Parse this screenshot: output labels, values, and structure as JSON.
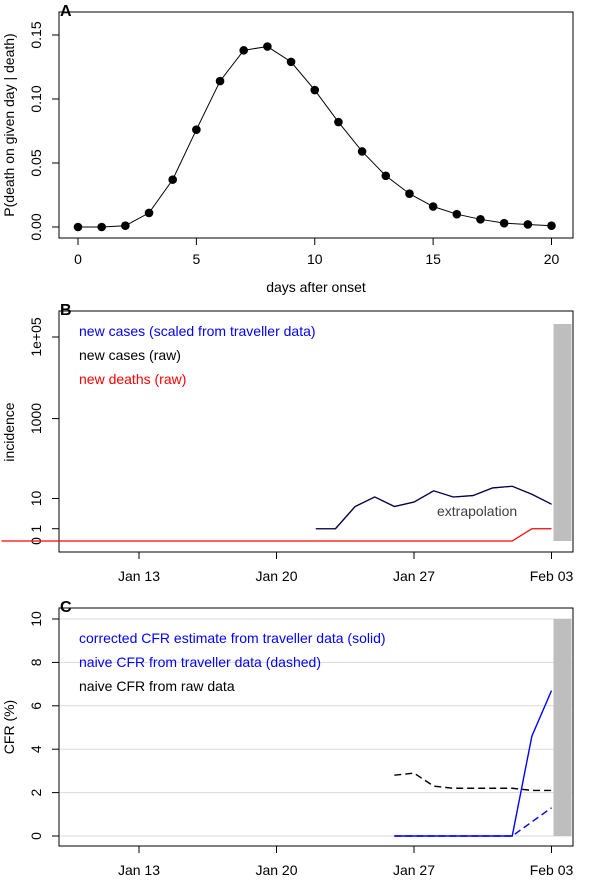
{
  "chart_data": [
    {
      "panel": "A",
      "type": "line",
      "xlabel": "days after onset",
      "ylabel": "P(death on given day | death)",
      "xlim": [
        0,
        20
      ],
      "ylim": [
        0,
        0.15
      ],
      "xticks": [
        0,
        5,
        10,
        15,
        20
      ],
      "xtick_labels": [
        "0",
        "5",
        "10",
        "15",
        "20"
      ],
      "yticks": [
        0,
        0.05,
        0.1,
        0.15
      ],
      "ytick_labels": [
        "0.00",
        "0.05",
        "0.10",
        "0.15"
      ],
      "markers": true,
      "x": [
        0,
        1,
        2,
        3,
        4,
        5,
        6,
        7,
        8,
        9,
        10,
        11,
        12,
        13,
        14,
        15,
        16,
        17,
        18,
        19,
        20
      ],
      "y": [
        0.0,
        0.0,
        0.001,
        0.011,
        0.037,
        0.076,
        0.114,
        0.138,
        0.141,
        0.129,
        0.107,
        0.082,
        0.059,
        0.04,
        0.026,
        0.016,
        0.01,
        0.006,
        0.003,
        0.002,
        0.001
      ]
    },
    {
      "panel": "B",
      "type": "line",
      "ylabel": "incidence",
      "scale": "y = log10(incidence + 1), ticks labelled in incidence",
      "xticks": [
        "2020-01-13",
        "2020-01-20",
        "2020-01-27",
        "2020-02-03"
      ],
      "xtick_labels": [
        "Jan 13",
        "Jan 20",
        "Jan 27",
        "Feb 03"
      ],
      "yticks": [
        0,
        1,
        10,
        1000,
        100000
      ],
      "ytick_labels": [
        "0",
        "1",
        "10",
        "1000",
        "1e+05"
      ],
      "shaded_region": {
        "from": "2020-02-03",
        "color": "#bebebe"
      },
      "annotation": "extrapolation",
      "legend": [
        {
          "text": "new cases (scaled from traveller data)",
          "color": "#0000ff"
        },
        {
          "text": "new cases (raw)",
          "color": "#000000"
        },
        {
          "text": "new deaths (raw)",
          "color": "#ff0000"
        }
      ],
      "series": [
        {
          "color": "#000000",
          "x": [
            "2020-01-22",
            "2020-01-23",
            "2020-01-24",
            "2020-01-25",
            "2020-01-26",
            "2020-01-27",
            "2020-01-28",
            "2020-01-29",
            "2020-01-30",
            "2020-01-31",
            "2020-02-01",
            "2020-02-02",
            "2020-02-03"
          ],
          "y": [
            1,
            1,
            6,
            11,
            6,
            8,
            16,
            11,
            12,
            19,
            21,
            13,
            7
          ]
        },
        {
          "color": "#ff0000",
          "x": [
            "2020-01-06",
            "2020-02-01",
            "2020-02-02",
            "2020-02-03"
          ],
          "y": [
            0,
            0,
            1,
            1
          ]
        }
      ]
    },
    {
      "panel": "C",
      "type": "line",
      "ylabel": "CFR (%)",
      "ylim": [
        0,
        10
      ],
      "xticks": [
        "2020-01-13",
        "2020-01-20",
        "2020-01-27",
        "2020-02-03"
      ],
      "xtick_labels": [
        "Jan 13",
        "Jan 20",
        "Jan 27",
        "Feb 03"
      ],
      "yticks": [
        0,
        2,
        4,
        6,
        8,
        10
      ],
      "ytick_labels": [
        "0",
        "2",
        "4",
        "6",
        "8",
        "10"
      ],
      "grid": true,
      "shaded_region": {
        "from": "2020-02-03",
        "color": "#bebebe"
      },
      "legend": [
        {
          "text": "corrected CFR estimate from traveller data (solid)",
          "color": "#0000ff"
        },
        {
          "text": "naive CFR from traveller data (dashed)",
          "color": "#0000ff"
        },
        {
          "text": "naive CFR from raw data",
          "color": "#000000"
        }
      ],
      "series": [
        {
          "color": "#000000",
          "dash": true,
          "x": [
            "2020-01-26",
            "2020-01-27",
            "2020-01-28",
            "2020-01-29",
            "2020-01-30",
            "2020-01-31",
            "2020-02-01",
            "2020-02-02",
            "2020-02-03"
          ],
          "y": [
            2.8,
            2.9,
            2.3,
            2.2,
            2.2,
            2.2,
            2.2,
            2.1,
            2.1
          ]
        },
        {
          "color": "#0000ff",
          "dash": false,
          "x": [
            "2020-01-26",
            "2020-02-01",
            "2020-02-02",
            "2020-02-03"
          ],
          "y": [
            0,
            0,
            4.6,
            6.7
          ]
        },
        {
          "color": "#0000ff",
          "dash": true,
          "x": [
            "2020-01-26",
            "2020-02-01",
            "2020-02-03"
          ],
          "y": [
            0,
            0,
            1.3
          ]
        }
      ]
    }
  ]
}
